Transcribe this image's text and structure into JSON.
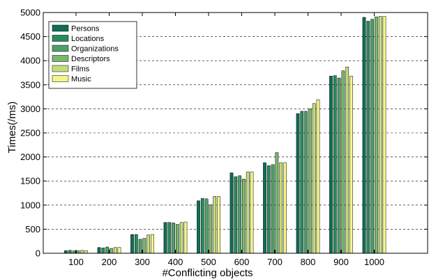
{
  "chart_data": {
    "type": "bar",
    "xlabel": "#Conflicting objects",
    "ylabel": "Times(/ms)",
    "categories": [
      "100",
      "200",
      "300",
      "400",
      "500",
      "600",
      "700",
      "800",
      "900",
      "1000"
    ],
    "ylim": [
      0,
      5000
    ],
    "yticks": [
      "0",
      "500",
      "1000",
      "1500",
      "2000",
      "2500",
      "3000",
      "3500",
      "4000",
      "4500",
      "5000"
    ],
    "grid": "horizontal-dashed",
    "legend_position": "top-left",
    "series": [
      {
        "name": "Persons",
        "color": "#0f6e55",
        "values": [
          55,
          120,
          390,
          640,
          1090,
          1670,
          1880,
          2900,
          3680,
          4900
        ]
      },
      {
        "name": "Locations",
        "color": "#2a8a5e",
        "values": [
          60,
          110,
          390,
          640,
          1140,
          1590,
          1820,
          2950,
          3690,
          4820
        ]
      },
      {
        "name": "Organizations",
        "color": "#4fa06a",
        "values": [
          50,
          130,
          290,
          630,
          1130,
          1610,
          1840,
          2950,
          3640,
          4860
        ]
      },
      {
        "name": "Descriptors",
        "color": "#7ab86d",
        "values": [
          55,
          100,
          310,
          600,
          1010,
          1540,
          2090,
          3000,
          3790,
          4910
        ]
      },
      {
        "name": "Films",
        "color": "#c4dd7a",
        "values": [
          60,
          120,
          380,
          640,
          1180,
          1690,
          1880,
          3110,
          3870,
          4920
        ]
      },
      {
        "name": "Music",
        "color": "#f3f58a",
        "values": [
          55,
          120,
          390,
          650,
          1180,
          1690,
          1880,
          3190,
          3680,
          4920
        ]
      }
    ]
  }
}
